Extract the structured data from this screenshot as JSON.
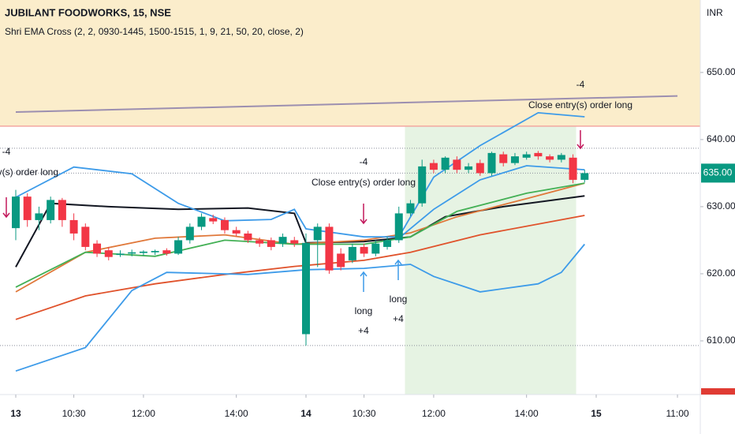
{
  "chart_data": {
    "type": "candlestick",
    "title": "JUBILANT FOODWORKS, 15, NSE",
    "subtitle": "Shri EMA Cross (2, 2, 0930-1445, 1500-1515, 1, 9, 21, 50, 20, close, 2)",
    "currency": "INR",
    "categories": [
      "13 09:15",
      "13 09:30",
      "13 09:45",
      "13 10:00",
      "13 10:15",
      "13 10:30",
      "13 10:45",
      "13 11:00",
      "13 11:15",
      "13 11:30",
      "13 11:45",
      "13 12:00",
      "13 12:15",
      "13 12:30",
      "13 12:45",
      "13 13:00",
      "13 13:15",
      "13 13:30",
      "13 13:45",
      "13 14:00",
      "13 14:15",
      "13 14:30",
      "13 14:45",
      "13 15:00",
      "13 15:15",
      "14 09:15",
      "14 09:30",
      "14 09:45",
      "14 10:00",
      "14 10:15",
      "14 10:30",
      "14 10:45",
      "14 11:00",
      "14 11:15",
      "14 11:30",
      "14 11:45",
      "14 12:00",
      "14 12:15",
      "14 12:30",
      "14 12:45",
      "14 13:00",
      "14 13:15",
      "14 13:30",
      "14 13:45",
      "14 14:00",
      "14 14:15",
      "14 14:30",
      "14 14:45",
      "14 15:00",
      "14 15:15",
      "15 09:15",
      "15 09:30",
      "15 09:45",
      "15 10:00",
      "15 10:15",
      "15 10:30",
      "15 10:45",
      "15 11:00"
    ],
    "open": [
      626.8,
      631.5,
      628,
      628,
      631,
      628,
      627,
      624.5,
      623.5,
      622.8,
      623,
      623.1,
      623.2,
      623.5,
      623,
      625,
      627,
      628.3,
      628,
      626.5,
      626,
      625,
      625,
      624.5,
      625,
      611,
      625,
      627,
      623,
      622,
      624,
      623,
      624,
      625,
      629,
      630.5,
      636.5,
      635.5,
      637,
      635.5,
      636.5,
      635,
      637.8,
      636.5,
      637.3,
      638,
      637.5,
      637,
      637.3,
      634,
      null,
      null,
      null,
      null,
      null,
      null,
      null,
      null
    ],
    "high": [
      632.5,
      632,
      630,
      631.5,
      631.3,
      629,
      627.5,
      625,
      624,
      623.5,
      623.6,
      623.5,
      623.6,
      623.8,
      625.5,
      627.5,
      629,
      628.8,
      628.4,
      627,
      626.4,
      625.4,
      625.4,
      626,
      625.5,
      626,
      627.5,
      627.5,
      623.8,
      624.5,
      624.5,
      625,
      625.5,
      630,
      631,
      637,
      637,
      637.5,
      637.5,
      636.5,
      637,
      638.2,
      638.2,
      638,
      638.2,
      638.3,
      637.8,
      638,
      637.8,
      635.5,
      null,
      null,
      null,
      null,
      null,
      null,
      null,
      null
    ],
    "low": [
      625,
      627,
      626.5,
      627.5,
      627,
      625,
      623.5,
      622.5,
      622,
      622.5,
      622.6,
      622.7,
      622.8,
      622.7,
      622.8,
      624.5,
      626.5,
      627.4,
      626,
      625.6,
      624.6,
      624,
      623.5,
      624,
      624,
      609.3,
      621,
      620,
      620.5,
      621.6,
      622.5,
      622.6,
      623.6,
      624.6,
      628.6,
      630,
      635,
      635,
      635,
      635,
      634.6,
      634.6,
      636,
      636.2,
      637,
      637,
      636.6,
      636.6,
      633.5,
      633.6,
      null,
      null,
      null,
      null,
      null,
      null,
      null,
      null
    ],
    "close": [
      631.5,
      628,
      629,
      631,
      628,
      626,
      624,
      623,
      622.5,
      623,
      623.2,
      623.3,
      623.4,
      623,
      625,
      627,
      628.5,
      627.8,
      626.5,
      626,
      625,
      624.5,
      624,
      625.5,
      624.5,
      624.6,
      627,
      620.5,
      621,
      624,
      623,
      624.5,
      625,
      629,
      630.5,
      636,
      635.5,
      637.3,
      635.5,
      636,
      635,
      638,
      636.5,
      637.5,
      637.8,
      637.5,
      637,
      637.7,
      634,
      635,
      null,
      null,
      null,
      null,
      null,
      null,
      null,
      null
    ],
    "up_color": "#089981",
    "down_color": "#f23645",
    "series": [
      {
        "color": "#131722",
        "x": [
          "13 09:15",
          "13 10:00",
          "13 11:15",
          "13 12:45",
          "13 14:15",
          "13 15:15",
          "14 09:15",
          "14 10:30",
          "14 11:30",
          "14 12:15",
          "14 13:30",
          "14 15:15"
        ],
        "values": [
          621,
          630.5,
          630,
          629.6,
          629.8,
          629,
          624.6,
          624.8,
          625.5,
          628.5,
          630,
          631.6
        ]
      },
      {
        "color": "#e0783a",
        "x": [
          "13 09:15",
          "13 10:45",
          "13 12:15",
          "13 13:45",
          "13 15:15",
          "14 10:30",
          "14 11:30",
          "14 12:30",
          "14 14:00",
          "14 15:15"
        ],
        "values": [
          617.3,
          623.2,
          625.3,
          625.8,
          624.4,
          625,
          626.1,
          628.5,
          631.2,
          633.5
        ]
      },
      {
        "color": "#43b055",
        "x": [
          "13 09:15",
          "13 10:45",
          "13 12:15",
          "13 13:45",
          "13 15:15",
          "14 10:30",
          "14 11:30",
          "14 12:30",
          "14 14:00",
          "14 15:15"
        ],
        "values": [
          618,
          623.2,
          622.6,
          625,
          624.4,
          624.4,
          625.5,
          629.3,
          632,
          633.5
        ]
      },
      {
        "color": "#e0522b",
        "x": [
          "13 09:15",
          "13 10:45",
          "13 12:15",
          "13 13:45",
          "13 15:15",
          "14 10:30",
          "14 11:30",
          "14 13:00",
          "14 15:15"
        ],
        "values": [
          613.2,
          616.7,
          618.5,
          619.9,
          621.1,
          622,
          623.2,
          625.8,
          628.7
        ]
      },
      {
        "color": "#3d9be9",
        "x": [
          "13 09:15",
          "13 10:30",
          "13 11:45",
          "13 12:45",
          "13 13:45",
          "13 14:45",
          "13 15:15",
          "14 09:15",
          "14 10:30",
          "14 11:15",
          "14 12:00",
          "14 13:00",
          "14 14:15",
          "14 15:15"
        ],
        "values": [
          631.4,
          635.9,
          634.9,
          630.5,
          627.9,
          628.1,
          629.6,
          626.7,
          625.5,
          625.5,
          634.4,
          639.1,
          644,
          643.4
        ]
      },
      {
        "color": "#3d9be9",
        "x": [
          "13 09:15",
          "13 10:45",
          "13 11:45",
          "13 12:30",
          "13 14:15",
          "14 09:15",
          "14 10:30",
          "14 11:30",
          "14 12:00",
          "14 13:00",
          "14 14:15",
          "14 14:45",
          "14 15:15"
        ],
        "values": [
          605.5,
          609,
          617.5,
          620.2,
          619.9,
          620.6,
          620.8,
          621.4,
          619.6,
          617.3,
          618.5,
          620.2,
          624.4
        ]
      },
      {
        "color": "#3d9be9",
        "x": [
          "14 11:15",
          "14 12:00",
          "14 13:00",
          "14 14:00",
          "14 15:15"
        ],
        "values": [
          625.3,
          629.6,
          634,
          636.1,
          635.5
        ]
      }
    ],
    "trendline": {
      "color": "#9c8fb0",
      "x": [
        "13 09:15",
        "15 11:00"
      ],
      "values": [
        644.1,
        646.5
      ]
    },
    "zones": [
      {
        "from": 642,
        "color": "#fbedcb"
      },
      {
        "x": [
          "14 11:30",
          "14 15:00"
        ],
        "color": "#e6f3e3"
      }
    ],
    "level_line": {
      "value": 642,
      "color": "#f4a7a0"
    },
    "levels": [
      638.7,
      635,
      609.3
    ],
    "last_price": {
      "value": 635,
      "label": "635.00"
    },
    "annotations": [
      {
        "label": "-4",
        "text": "Close entry(s) order long"
      },
      {
        "label": "-4",
        "text": "Close entry(s) order long"
      },
      {
        "label": "-4",
        "text": "Close entry(s) order long"
      },
      {
        "label": "+4",
        "text": "long"
      },
      {
        "label": "+4",
        "text": "long"
      }
    ],
    "ylim": [
      602,
      660.8
    ],
    "yticks": [
      {
        "value": 610,
        "label": "610.00"
      },
      {
        "value": 620,
        "label": "620.00"
      },
      {
        "value": 630,
        "label": "630.00"
      },
      {
        "value": 640,
        "label": "640.00"
      },
      {
        "value": 650,
        "label": "650.00"
      }
    ],
    "xticks": [
      {
        "value": "13 09:15",
        "label": "13"
      },
      {
        "value": "13 10:30",
        "label": "10:30"
      },
      {
        "value": "13 12:00",
        "label": "12:00"
      },
      {
        "value": "13 14:00",
        "label": "14:00"
      },
      {
        "value": "14 09:15",
        "label": "14"
      },
      {
        "value": "14 10:30",
        "label": "10:30"
      },
      {
        "value": "14 12:00",
        "label": "12:00"
      },
      {
        "value": "14 14:00",
        "label": "14:00"
      },
      {
        "value": "15 09:15",
        "label": "15"
      },
      {
        "value": "15 11:00",
        "label": "11:00"
      }
    ],
    "grid": false
  }
}
